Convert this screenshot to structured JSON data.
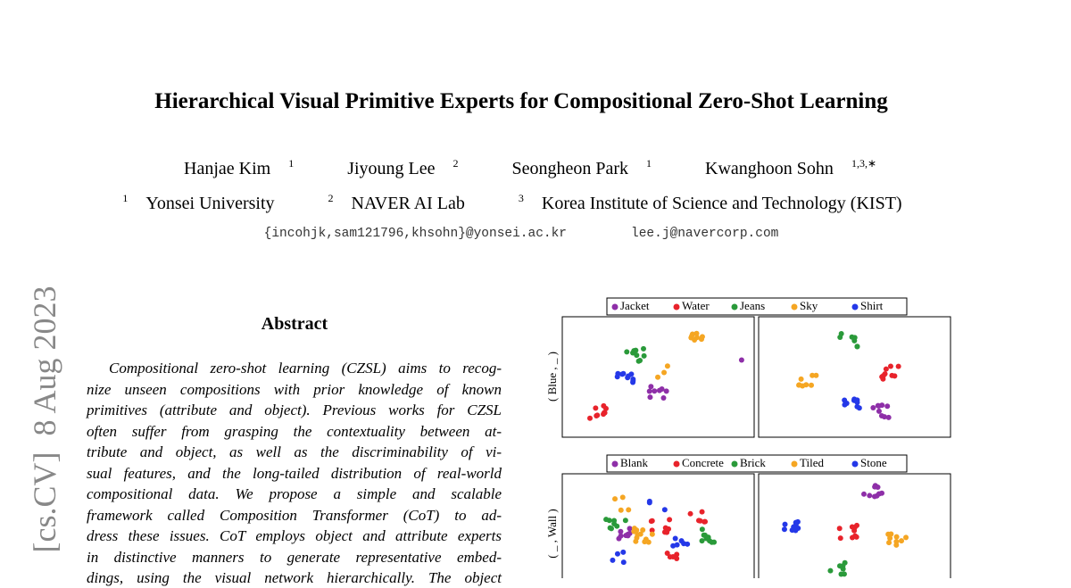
{
  "header": {
    "title": "Hierarchical Visual Primitive Experts for Compositional Zero-Shot Learning",
    "authors": [
      {
        "name": "Hanjae Kim",
        "sup": "1"
      },
      {
        "name": "Jiyoung Lee",
        "sup": "2"
      },
      {
        "name": "Seongheon Park",
        "sup": "1"
      },
      {
        "name": "Kwanghoon Sohn",
        "sup": "1,3,∗"
      }
    ],
    "affiliations": [
      {
        "sup": "1",
        "name": "Yonsei University"
      },
      {
        "sup": "2",
        "name": "NAVER AI Lab"
      },
      {
        "sup": "3",
        "name": "Korea Institute of Science and Technology (KIST)"
      }
    ],
    "emails": [
      "{incohjk,sam121796,khsohn}@yonsei.ac.kr",
      "lee.j@navercorp.com"
    ]
  },
  "stamp": "[cs.CV]  8 Aug 2023",
  "abstract": {
    "heading": "Abstract",
    "lines": [
      "Compositional zero-shot learning (CZSL) aims to recog-",
      "nize unseen compositions with prior knowledge of known",
      "primitives (attribute and object). Previous works for CZSL",
      "often suffer from grasping the contextuality between at-",
      "tribute and object, as well as the discriminability of vi-",
      "sual features, and the long-tailed distribution of real-world",
      "compositional data.  We propose a simple and scalable",
      "framework called Composition Transformer (CoT) to ad-",
      "dress these issues. CoT employs object and attribute experts",
      "in distinctive manners to generate representative embed-",
      "dings, using the visual network hierarchically.  The object"
    ]
  },
  "figure": {
    "rows": [
      {
        "label": "( Blue , _ )",
        "legend": [
          {
            "label": "Jacket",
            "color": "#8e2fa8"
          },
          {
            "label": "Water",
            "color": "#e8232b"
          },
          {
            "label": "Jeans",
            "color": "#2a9a3a"
          },
          {
            "label": "Sky",
            "color": "#f5a623"
          },
          {
            "label": "Shirt",
            "color": "#2438e8"
          }
        ]
      },
      {
        "label": "( _ , Wall )",
        "legend": [
          {
            "label": "Blank",
            "color": "#8e2fa8"
          },
          {
            "label": "Concrete",
            "color": "#e8232b"
          },
          {
            "label": "Brick",
            "color": "#2a9a3a"
          },
          {
            "label": "Tiled",
            "color": "#f5a623"
          },
          {
            "label": "Stone",
            "color": "#2438e8"
          }
        ]
      }
    ]
  }
}
